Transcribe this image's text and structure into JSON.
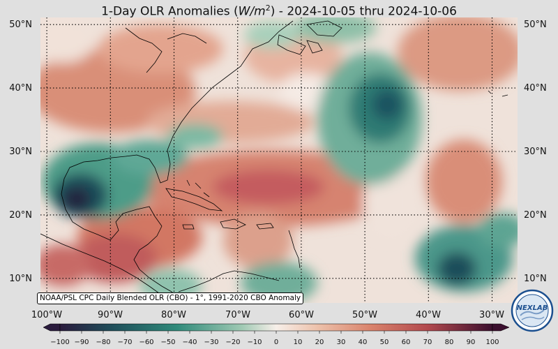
{
  "title": {
    "prefix": "1-Day OLR Anomalies (",
    "unit_var": "W/m",
    "unit_exp": "2",
    "suffix": ") - 2024-10-05 thru 2024-10-06"
  },
  "map": {
    "lon_range": [
      -101,
      -26
    ],
    "lat_range": [
      6,
      51
    ],
    "lat_gridlines": [
      10,
      20,
      30,
      40,
      50
    ],
    "lon_gridlines": [
      -100,
      -90,
      -80,
      -70,
      -60,
      -50,
      -40,
      -30
    ],
    "lat_labels": [
      "10°N",
      "20°N",
      "30°N",
      "40°N",
      "50°N"
    ],
    "lon_labels": [
      "100°W",
      "90°W",
      "80°W",
      "70°W",
      "60°W",
      "50°W",
      "40°W",
      "30°W"
    ],
    "gridline_style": "dotted"
  },
  "colorbar": {
    "ticks": [
      "−100",
      "−90",
      "−80",
      "−70",
      "−60",
      "−50",
      "−40",
      "−30",
      "−20",
      "−10",
      "0",
      "10",
      "20",
      "30",
      "40",
      "50",
      "60",
      "70",
      "80",
      "90",
      "100"
    ],
    "range": [
      -100,
      100
    ],
    "colors": {
      "min": "#2a1b3d",
      "neg_strong": "#1f4e5a",
      "neg_mid": "#2f8a7a",
      "neg_light": "#9fc9b3",
      "zero": "#f7efe9",
      "pos_light": "#ecbfa8",
      "pos_mid": "#d9826b",
      "pos_strong": "#b2494e",
      "max": "#3b0f2e"
    }
  },
  "credit": "NOAA/PSL CPC Daily Blended OLR (CBO) - 1°, 1991-2020 CBO Anomaly",
  "logo": {
    "text": "NEXLAB",
    "ring_color": "#1b4f8f"
  }
}
